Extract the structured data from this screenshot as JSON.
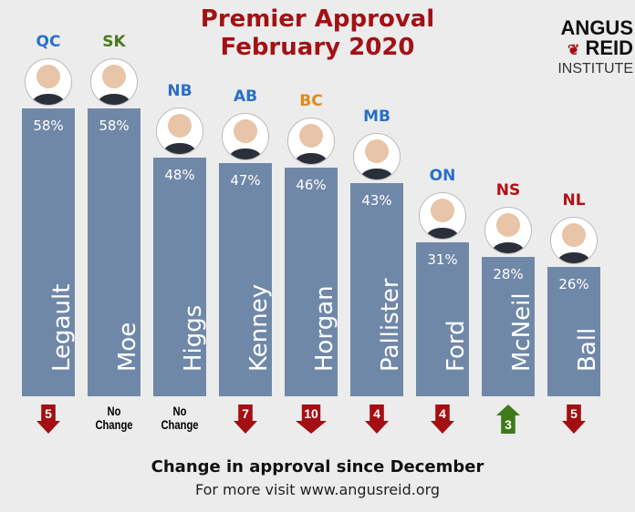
{
  "logo": {
    "line1": "ANGUS",
    "line2": "REID",
    "line3": "INSTITUTE"
  },
  "colors": {
    "bar": "#7088a8",
    "title": "#a31115",
    "down": "#a30f12",
    "up": "#3e7a1a"
  },
  "chart_data": {
    "type": "bar",
    "title": "Premier Approval",
    "subtitle": "February 2020",
    "ylim": [
      0,
      60
    ],
    "categories": [
      "Legault",
      "Moe",
      "Higgs",
      "Kenney",
      "Horgan",
      "Pallister",
      "Ford",
      "McNeil",
      "Ball"
    ],
    "provinces": [
      "QC",
      "SK",
      "NB",
      "AB",
      "BC",
      "MB",
      "ON",
      "NS",
      "NL"
    ],
    "province_colors": [
      "#2a6fc9",
      "#4a7a1a",
      "#2a6fc9",
      "#2a6fc9",
      "#e08a1a",
      "#2a6fc9",
      "#2a6fc9",
      "#b01218",
      "#b01218"
    ],
    "values": [
      58,
      58,
      48,
      47,
      46,
      43,
      31,
      28,
      26
    ],
    "value_labels": [
      "58%",
      "58%",
      "48%",
      "47%",
      "46%",
      "43%",
      "31%",
      "28%",
      "26%"
    ],
    "change": [
      -5,
      null,
      null,
      -7,
      -10,
      -4,
      -4,
      3,
      -5
    ],
    "change_labels": [
      "5",
      "No Change",
      "No Change",
      "7",
      "10",
      "4",
      "4",
      "3",
      "5"
    ],
    "change_title": "Change in approval since December"
  },
  "footer": {
    "visit": "For more visit www.angusreid.org"
  }
}
